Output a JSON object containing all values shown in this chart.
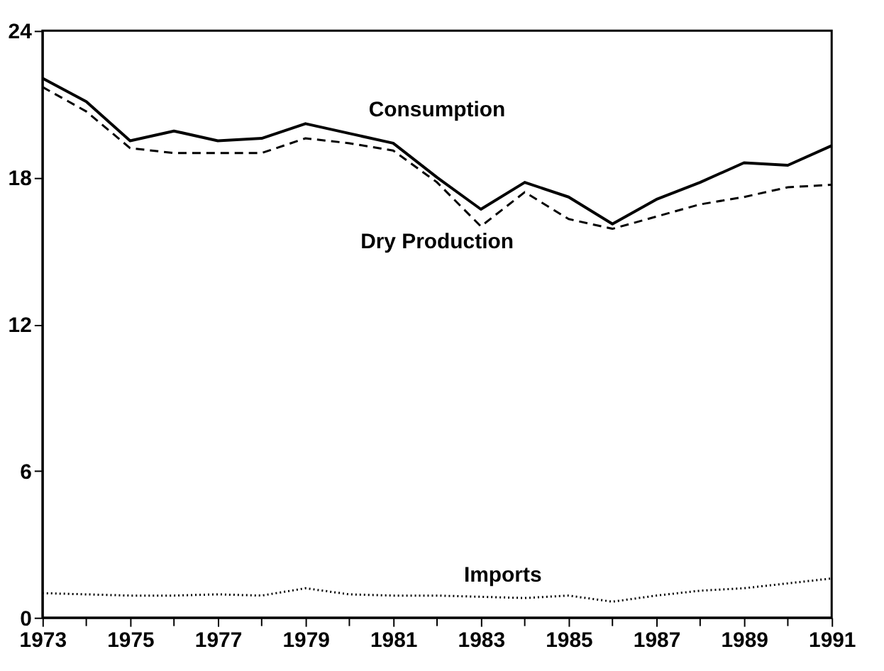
{
  "chart_data": {
    "type": "line",
    "x": [
      1973,
      1974,
      1975,
      1976,
      1977,
      1978,
      1979,
      1980,
      1981,
      1982,
      1983,
      1984,
      1985,
      1986,
      1987,
      1988,
      1989,
      1990,
      1991
    ],
    "series": [
      {
        "color": "#000000",
        "line_style": "solid",
        "values": [
          22.06,
          21.1,
          19.5,
          19.9,
          19.5,
          19.6,
          20.2,
          19.8,
          19.4,
          18.0,
          16.7,
          17.8,
          17.2,
          16.1,
          17.1,
          17.8,
          18.6,
          18.5,
          19.3
        ]
      },
      {
        "color": "#000000",
        "line_style": "dashed",
        "values": [
          21.7,
          20.7,
          19.2,
          19.0,
          19.0,
          19.0,
          19.6,
          19.4,
          19.1,
          17.8,
          16.0,
          17.4,
          16.3,
          15.9,
          16.4,
          16.9,
          17.2,
          17.6,
          17.7
        ]
      },
      {
        "color": "#000000",
        "line_style": "dotted",
        "values": [
          1.0,
          0.95,
          0.9,
          0.9,
          0.95,
          0.9,
          1.2,
          0.95,
          0.9,
          0.9,
          0.85,
          0.8,
          0.9,
          0.65,
          0.9,
          1.1,
          1.2,
          1.4,
          1.6
        ]
      }
    ],
    "annotations": [
      "Consumption",
      "Dry Production",
      "Imports"
    ],
    "xlim": [
      1973,
      1991
    ],
    "xticks": [
      1973,
      {
        "value": 1974,
        "label": null
      },
      1975,
      {
        "value": 1976,
        "label": null
      },
      1977,
      {
        "value": 1978,
        "label": null
      },
      1979,
      {
        "value": 1980,
        "label": null
      },
      1981,
      {
        "value": 1982,
        "label": null
      },
      1983,
      {
        "value": 1984,
        "label": null
      },
      1985,
      {
        "value": 1986,
        "label": null
      },
      1987,
      {
        "value": 1988,
        "label": null
      },
      1989,
      {
        "value": 1990,
        "label": null
      },
      1991
    ],
    "ylim": [
      0,
      24
    ],
    "yticks": [
      0,
      6,
      12,
      18,
      24
    ],
    "grid": false,
    "marker": "none"
  }
}
